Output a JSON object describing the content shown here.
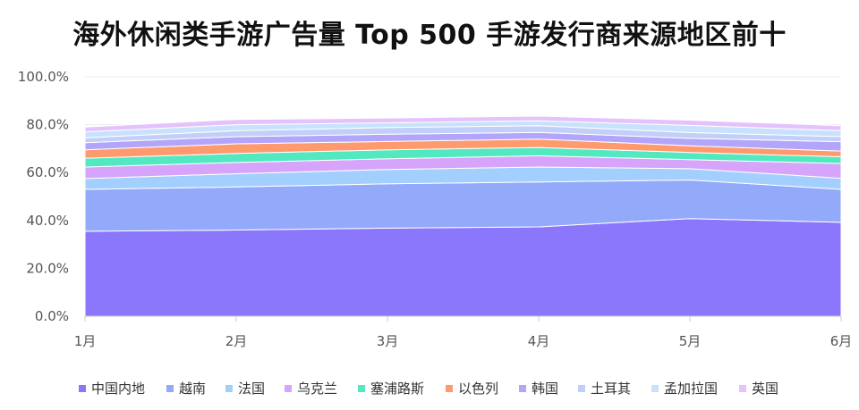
{
  "chart_data": {
    "type": "area",
    "stacked": true,
    "title": "海外休闲类手游广告量 Top 500 手游发行商来源地区前十",
    "xlabel": "",
    "ylabel": "",
    "categories": [
      "1月",
      "2月",
      "3月",
      "4月",
      "5月",
      "6月"
    ],
    "ylim": [
      0,
      100
    ],
    "yticks": [
      "0.0%",
      "20.0%",
      "40.0%",
      "60.0%",
      "80.0%",
      "100.0%"
    ],
    "grid": true,
    "legend_position": "bottom",
    "series": [
      {
        "name": "中国内地",
        "color": "#8B77FB",
        "values": [
          35.5,
          36.0,
          36.8,
          37.3,
          40.8,
          39.2
        ]
      },
      {
        "name": "越南",
        "color": "#93A9F9",
        "values": [
          17.5,
          18.0,
          18.5,
          18.8,
          16.1,
          13.8
        ]
      },
      {
        "name": "法国",
        "color": "#A3CFFF",
        "values": [
          4.5,
          5.5,
          6.0,
          6.2,
          4.7,
          4.6
        ]
      },
      {
        "name": "乌克兰",
        "color": "#D6A5FB",
        "values": [
          4.8,
          4.7,
          4.5,
          4.7,
          3.8,
          6.2
        ]
      },
      {
        "name": "塞浦路斯",
        "color": "#52E8C0",
        "values": [
          3.7,
          3.8,
          3.7,
          3.5,
          3.0,
          2.8
        ]
      },
      {
        "name": "以色列",
        "color": "#FF9A6E",
        "values": [
          3.5,
          4.0,
          3.5,
          3.5,
          2.8,
          2.4
        ]
      },
      {
        "name": "韩国",
        "color": "#B3A6FA",
        "values": [
          3.0,
          3.0,
          3.0,
          2.8,
          3.1,
          3.9
        ]
      },
      {
        "name": "土耳其",
        "color": "#C2CFF8",
        "values": [
          2.0,
          2.5,
          2.8,
          2.8,
          2.4,
          2.1
        ]
      },
      {
        "name": "孟加拉国",
        "color": "#C8E2FE",
        "values": [
          2.5,
          2.5,
          2.0,
          2.0,
          3.0,
          2.5
        ]
      },
      {
        "name": "英国",
        "color": "#E4C2FD",
        "values": [
          2.0,
          2.2,
          2.0,
          2.0,
          2.2,
          2.1
        ]
      }
    ]
  }
}
